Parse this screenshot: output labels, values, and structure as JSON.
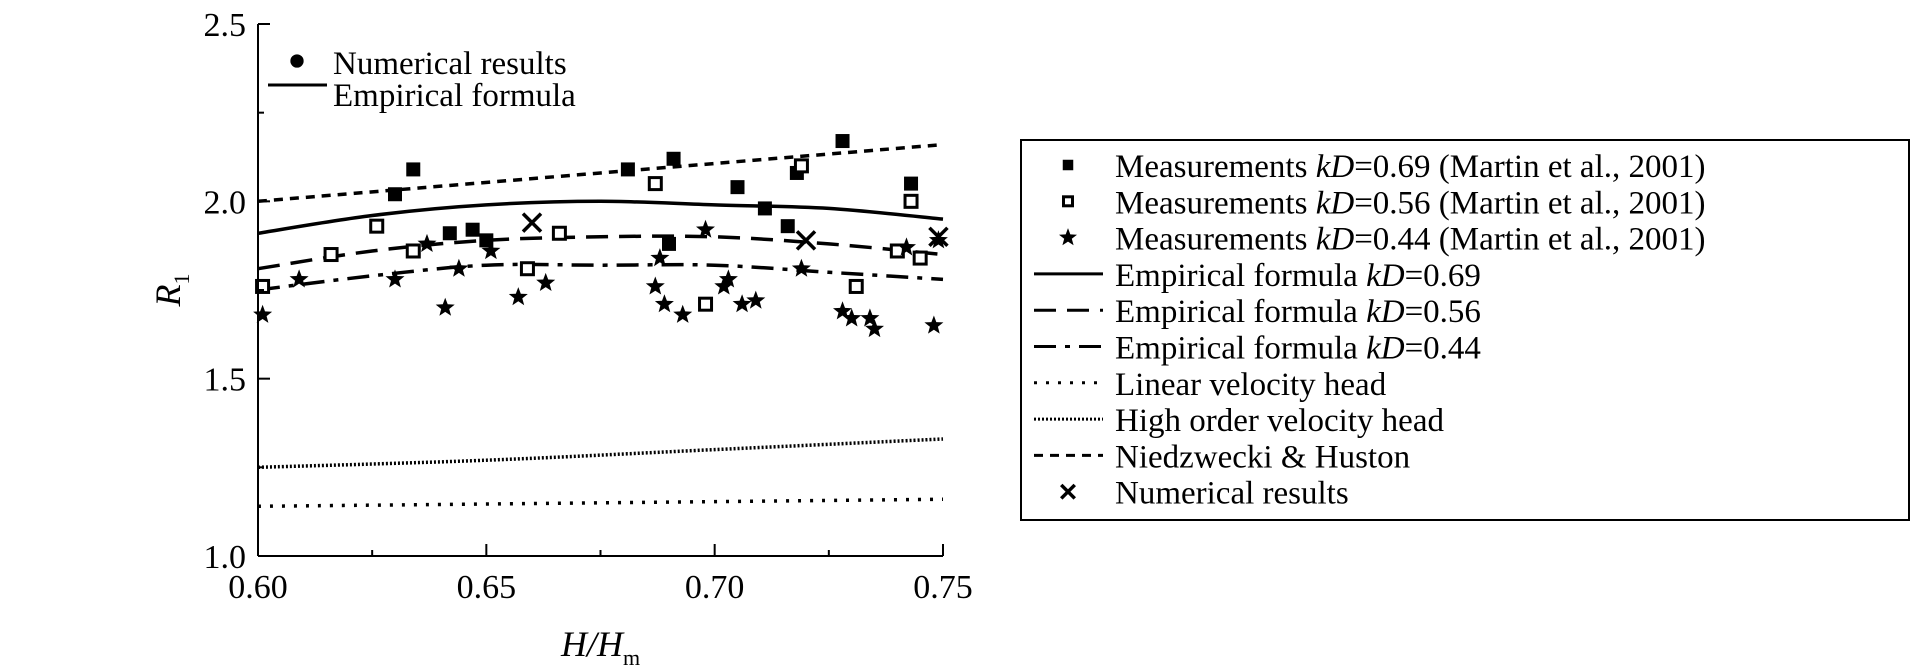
{
  "chart_data": {
    "type": "scatter",
    "xlabel": {
      "main": "H/H",
      "sub": "m"
    },
    "ylabel": {
      "main": "R",
      "sub": "1"
    },
    "xlim": [
      0.6,
      0.75
    ],
    "ylim": [
      1.0,
      2.5
    ],
    "x_ticks": [
      "0.60",
      "0.65",
      "0.70",
      "0.75"
    ],
    "y_ticks": [
      "1.0",
      "1.5",
      "2.0",
      "2.5"
    ],
    "grid": false,
    "inner_legend": [
      {
        "symbol": "dot",
        "label": "Numerical results"
      },
      {
        "symbol": "solid",
        "label": "Empirical formula"
      }
    ],
    "legend": [
      {
        "symbol": "filled-square",
        "prefix": "Measurements ",
        "italic": "kD",
        "suffix": "=0.69 (Martin et al., 2001)"
      },
      {
        "symbol": "open-square",
        "prefix": "Measurements ",
        "italic": "kD",
        "suffix": "=0.56 (Martin et al., 2001)"
      },
      {
        "symbol": "star",
        "prefix": "Measurements ",
        "italic": "kD",
        "suffix": "=0.44 (Martin et al., 2001)"
      },
      {
        "symbol": "solid",
        "prefix": "Empirical formula ",
        "italic": "kD",
        "suffix": "=0.69"
      },
      {
        "symbol": "dash",
        "prefix": "Empirical formula ",
        "italic": "kD",
        "suffix": "=0.56"
      },
      {
        "symbol": "dashdot",
        "prefix": "Empirical formula ",
        "italic": "kD",
        "suffix": "=0.44"
      },
      {
        "symbol": "dot",
        "prefix": "Linear velocity head",
        "italic": "",
        "suffix": ""
      },
      {
        "symbol": "fine-dot",
        "prefix": "High order velocity head",
        "italic": "",
        "suffix": ""
      },
      {
        "symbol": "short-dash",
        "prefix": "Niedzwecki & Huston",
        "italic": "",
        "suffix": ""
      },
      {
        "symbol": "cross",
        "prefix": "Numerical results",
        "italic": "",
        "suffix": ""
      }
    ],
    "series": [
      {
        "style": "filled-square",
        "points": [
          [
            0.63,
            2.02
          ],
          [
            0.634,
            2.09
          ],
          [
            0.642,
            1.91
          ],
          [
            0.647,
            1.92
          ],
          [
            0.65,
            1.89
          ],
          [
            0.681,
            2.09
          ],
          [
            0.69,
            1.88
          ],
          [
            0.691,
            2.12
          ],
          [
            0.705,
            2.04
          ],
          [
            0.711,
            1.98
          ],
          [
            0.716,
            1.93
          ],
          [
            0.718,
            2.08
          ],
          [
            0.728,
            2.17
          ],
          [
            0.743,
            2.05
          ]
        ]
      },
      {
        "style": "open-square",
        "points": [
          [
            0.601,
            1.76
          ],
          [
            0.616,
            1.85
          ],
          [
            0.626,
            1.93
          ],
          [
            0.634,
            1.86
          ],
          [
            0.659,
            1.81
          ],
          [
            0.666,
            1.91
          ],
          [
            0.687,
            2.05
          ],
          [
            0.698,
            1.71
          ],
          [
            0.719,
            2.1
          ],
          [
            0.731,
            1.76
          ],
          [
            0.74,
            1.86
          ],
          [
            0.743,
            2.0
          ],
          [
            0.745,
            1.84
          ]
        ]
      },
      {
        "style": "star",
        "points": [
          [
            0.601,
            1.68
          ],
          [
            0.609,
            1.78
          ],
          [
            0.63,
            1.78
          ],
          [
            0.637,
            1.88
          ],
          [
            0.641,
            1.7
          ],
          [
            0.644,
            1.81
          ],
          [
            0.651,
            1.86
          ],
          [
            0.657,
            1.73
          ],
          [
            0.663,
            1.77
          ],
          [
            0.687,
            1.76
          ],
          [
            0.688,
            1.84
          ],
          [
            0.689,
            1.71
          ],
          [
            0.693,
            1.68
          ],
          [
            0.698,
            1.92
          ],
          [
            0.702,
            1.76
          ],
          [
            0.703,
            1.78
          ],
          [
            0.706,
            1.71
          ],
          [
            0.709,
            1.72
          ],
          [
            0.719,
            1.81
          ],
          [
            0.728,
            1.69
          ],
          [
            0.73,
            1.67
          ],
          [
            0.734,
            1.67
          ],
          [
            0.735,
            1.64
          ],
          [
            0.742,
            1.87
          ],
          [
            0.748,
            1.65
          ],
          [
            0.749,
            1.89
          ]
        ]
      },
      {
        "style": "cross",
        "points": [
          [
            0.66,
            1.94
          ],
          [
            0.72,
            1.89
          ],
          [
            0.749,
            1.9
          ]
        ]
      },
      {
        "style": "solid",
        "x": [
          0.6,
          0.625,
          0.65,
          0.675,
          0.7,
          0.725,
          0.75
        ],
        "y": [
          1.91,
          1.96,
          1.99,
          2.0,
          1.99,
          1.98,
          1.95
        ]
      },
      {
        "style": "dash",
        "x": [
          0.6,
          0.625,
          0.65,
          0.675,
          0.7,
          0.725,
          0.75
        ],
        "y": [
          1.81,
          1.86,
          1.89,
          1.9,
          1.9,
          1.88,
          1.85
        ]
      },
      {
        "style": "dashdot",
        "x": [
          0.6,
          0.625,
          0.65,
          0.675,
          0.7,
          0.725,
          0.75
        ],
        "y": [
          1.75,
          1.79,
          1.82,
          1.82,
          1.82,
          1.8,
          1.78
        ]
      },
      {
        "style": "short-dash",
        "x": [
          0.6,
          0.75
        ],
        "y": [
          2.0,
          2.16
        ]
      },
      {
        "style": "fine-dot",
        "x": [
          0.6,
          0.65,
          0.7,
          0.75
        ],
        "y": [
          1.25,
          1.27,
          1.3,
          1.33
        ]
      },
      {
        "style": "dot",
        "x": [
          0.6,
          0.75
        ],
        "y": [
          1.14,
          1.16
        ]
      }
    ]
  }
}
